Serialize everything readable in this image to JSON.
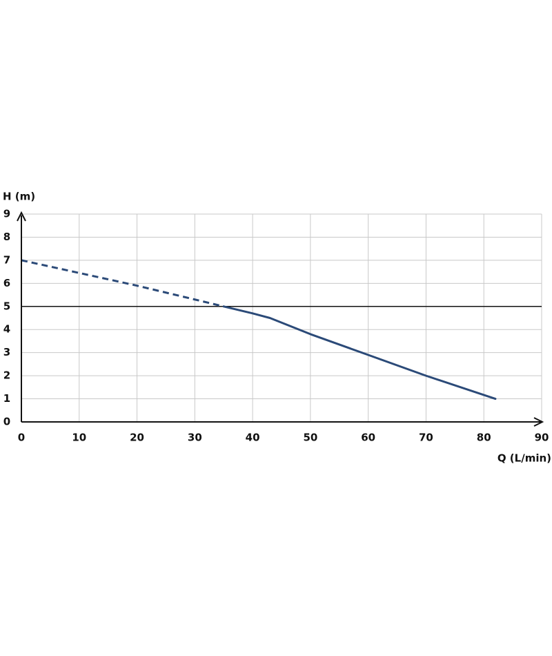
{
  "chart_data": {
    "type": "line",
    "y_label": "H (m)",
    "x_label": "Q (L/min)",
    "xlim": [
      0,
      90
    ],
    "xticks": [
      0,
      10,
      20,
      30,
      40,
      50,
      60,
      70,
      80,
      90
    ],
    "ylim": [
      0,
      9
    ],
    "yticks": [
      0,
      1,
      2,
      3,
      4,
      5,
      6,
      7,
      8,
      9
    ],
    "grid": true,
    "grid_color": "#c8c8c8",
    "reference_line": 5,
    "reference_color": "#111111",
    "series": [
      {
        "color": "#2b4a78",
        "dashed": true,
        "x": [
          0,
          10,
          20,
          30,
          35
        ],
        "values": [
          7,
          6.45,
          5.9,
          5.3,
          5
        ]
      },
      {
        "color": "#2b4a78",
        "dashed": false,
        "x": [
          35,
          40,
          43,
          50,
          60,
          70,
          82
        ],
        "values": [
          5,
          4.7,
          4.5,
          3.8,
          2.9,
          2.0,
          1.0
        ]
      }
    ]
  }
}
